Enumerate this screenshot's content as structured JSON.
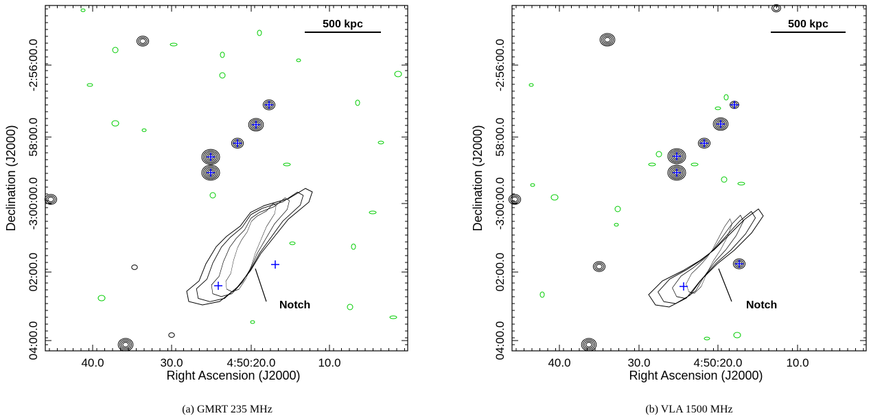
{
  "panels": [
    {
      "x_ticks": [
        "40.0",
        "30.0",
        "4:50:20.0",
        "10.0"
      ],
      "y_ticks": [
        "04:00.0",
        "02:00.0",
        "-3:00:00.0",
        "58:00.0",
        "-2:56:00.0"
      ],
      "x_label": "Right Ascension (J2000)",
      "y_label": "Declination (J2000)",
      "scale_bar": "500 kpc",
      "annotation": "Notch",
      "caption": "(a) GMRT 235 MHz"
    },
    {
      "x_ticks": [
        "40.0",
        "30.0",
        "4:50:20.0",
        "10.0"
      ],
      "y_ticks": [
        "04:00.0",
        "02:00.0",
        "-3:00:00.0",
        "58:00.0",
        "-2:56:00.0"
      ],
      "x_label": "Right Ascension (J2000)",
      "y_label": "Declination (J2000)",
      "scale_bar": "500 kpc",
      "annotation": "Notch",
      "caption": "(b) VLA 1500 MHz"
    }
  ]
}
